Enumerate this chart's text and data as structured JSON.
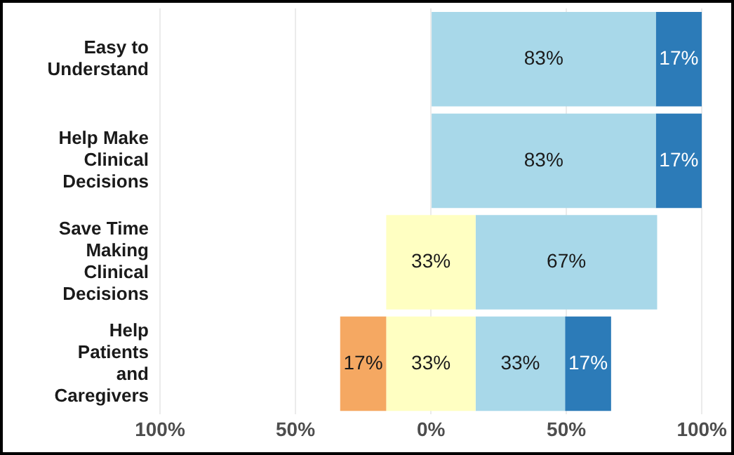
{
  "chart_data": {
    "type": "bar",
    "orientation": "horizontal",
    "categories": [
      "Easy to Understand",
      "Help Make Clinical Decisions",
      "Save Time Making Clinical Decisions",
      "Help Patients and Caregivers"
    ],
    "series": [
      {
        "color": "#f5a862",
        "base": [
          null,
          null,
          null,
          -33.5
        ],
        "values": [
          null,
          null,
          null,
          17
        ],
        "value_labels": [
          null,
          null,
          null,
          "17%"
        ]
      },
      {
        "color": "#ffffc2",
        "base": [
          null,
          null,
          -16.5,
          -16.5
        ],
        "values": [
          null,
          null,
          33,
          33
        ],
        "value_labels": [
          null,
          null,
          "33%",
          "33%"
        ]
      },
      {
        "color": "#a8d8e9",
        "base": [
          0,
          0,
          16.5,
          16.5
        ],
        "values": [
          83,
          83,
          67,
          33
        ],
        "value_labels": [
          "83%",
          "83%",
          "67%",
          "33%"
        ]
      },
      {
        "color": "#2c7bb8",
        "base": [
          83,
          83,
          null,
          49.5
        ],
        "values": [
          17,
          17,
          null,
          17
        ],
        "value_labels": [
          "17%",
          "17%",
          null,
          "17%"
        ]
      }
    ],
    "xlim": [
      -100,
      100
    ],
    "xticks": [
      {
        "value": -100,
        "label": "100%"
      },
      {
        "value": -50,
        "label": "50%"
      },
      {
        "value": 0,
        "label": "0%"
      },
      {
        "value": 50,
        "label": "50%"
      },
      {
        "value": 100,
        "label": "100%"
      }
    ],
    "grid": "x",
    "legend": false
  }
}
